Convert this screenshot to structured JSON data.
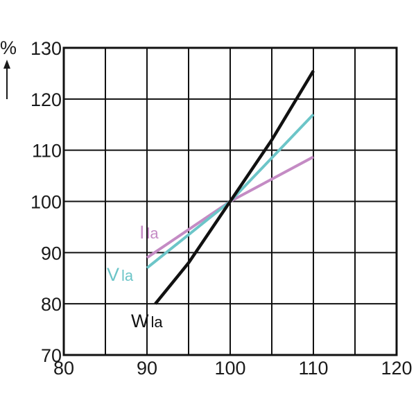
{
  "chart_data": {
    "type": "line",
    "ylabel": "%",
    "xlim": [
      80,
      120
    ],
    "ylim": [
      70,
      130
    ],
    "x_ticks": [
      80,
      90,
      100,
      110,
      120
    ],
    "y_ticks": [
      70,
      80,
      90,
      100,
      110,
      120,
      130
    ],
    "grid": true,
    "series": [
      {
        "name": "Ila",
        "name_main": "I",
        "name_sub": "la",
        "color": "#c48bc4",
        "points": [
          [
            90,
            89
          ],
          [
            100,
            100
          ],
          [
            110,
            108.7
          ]
        ]
      },
      {
        "name": "Vla",
        "name_main": "V",
        "name_sub": "la",
        "color": "#6cc5c8",
        "points": [
          [
            90,
            87
          ],
          [
            100,
            100
          ],
          [
            110,
            117
          ]
        ]
      },
      {
        "name": "Wla",
        "name_main": "W",
        "name_sub": "la",
        "color": "#111111",
        "points": [
          [
            91,
            80
          ],
          [
            95,
            88
          ],
          [
            100,
            100
          ],
          [
            105,
            112
          ],
          [
            110,
            125.5
          ]
        ]
      }
    ]
  }
}
